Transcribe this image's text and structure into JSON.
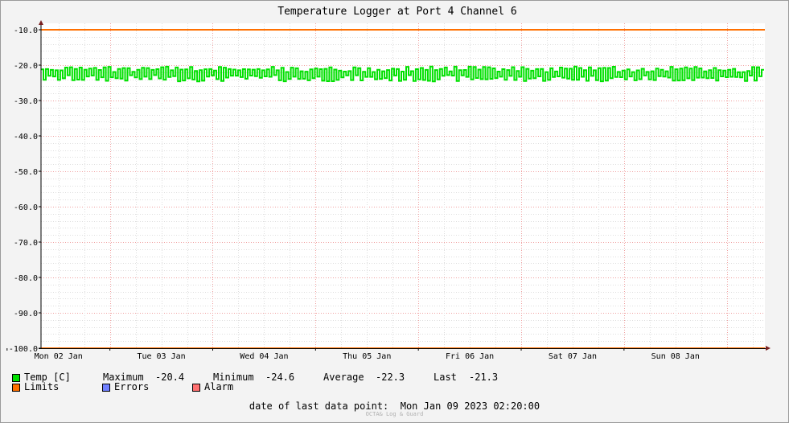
{
  "chart_data": {
    "type": "line",
    "title": "Temperature Logger at Port 4 Channel 6",
    "ylim": [
      -100.0,
      -10.0
    ],
    "yticks": [
      "-10.0",
      "-20.0",
      "-30.0",
      "-40.0",
      "-50.0",
      "-60.0",
      "-70.0",
      "-80.0",
      "-90.0",
      "-100.0"
    ],
    "xcategories": [
      "Mon 02 Jan",
      "Tue 03 Jan",
      "Wed 04 Jan",
      "Thu 05 Jan",
      "Fri 06 Jan",
      "Sat 07 Jan",
      "Sun 08 Jan"
    ],
    "grid": true,
    "series": [
      {
        "name": "Temp [C]",
        "color": "#00e000",
        "min": -24.6,
        "max": -20.4,
        "avg": -22.3,
        "last": -21.3
      },
      {
        "name": "Limits",
        "color": "#ff7000",
        "values": [
          -10.0,
          -100.0
        ]
      }
    ]
  },
  "legend": {
    "temp_label": "Temp [C]",
    "temp_color": "#00e000",
    "maximum_label": "Maximum",
    "maximum_value": "-20.4",
    "minimum_label": "Minimum",
    "minimum_value": "-24.6",
    "average_label": "Average",
    "average_value": "-22.3",
    "last_label": "Last",
    "last_value": "-21.3",
    "limits_label": "Limits",
    "limits_color": "#ff7000",
    "errors_label": "Errors",
    "errors_color": "#7080ff",
    "alarm_label": "Alarm",
    "alarm_color": "#ff7070"
  },
  "footer": {
    "last_point_label": "date of last data point:",
    "last_point_value": "Mon Jan 09 2023 02:20:00",
    "watermark": "OCTA& Log & Guard"
  }
}
